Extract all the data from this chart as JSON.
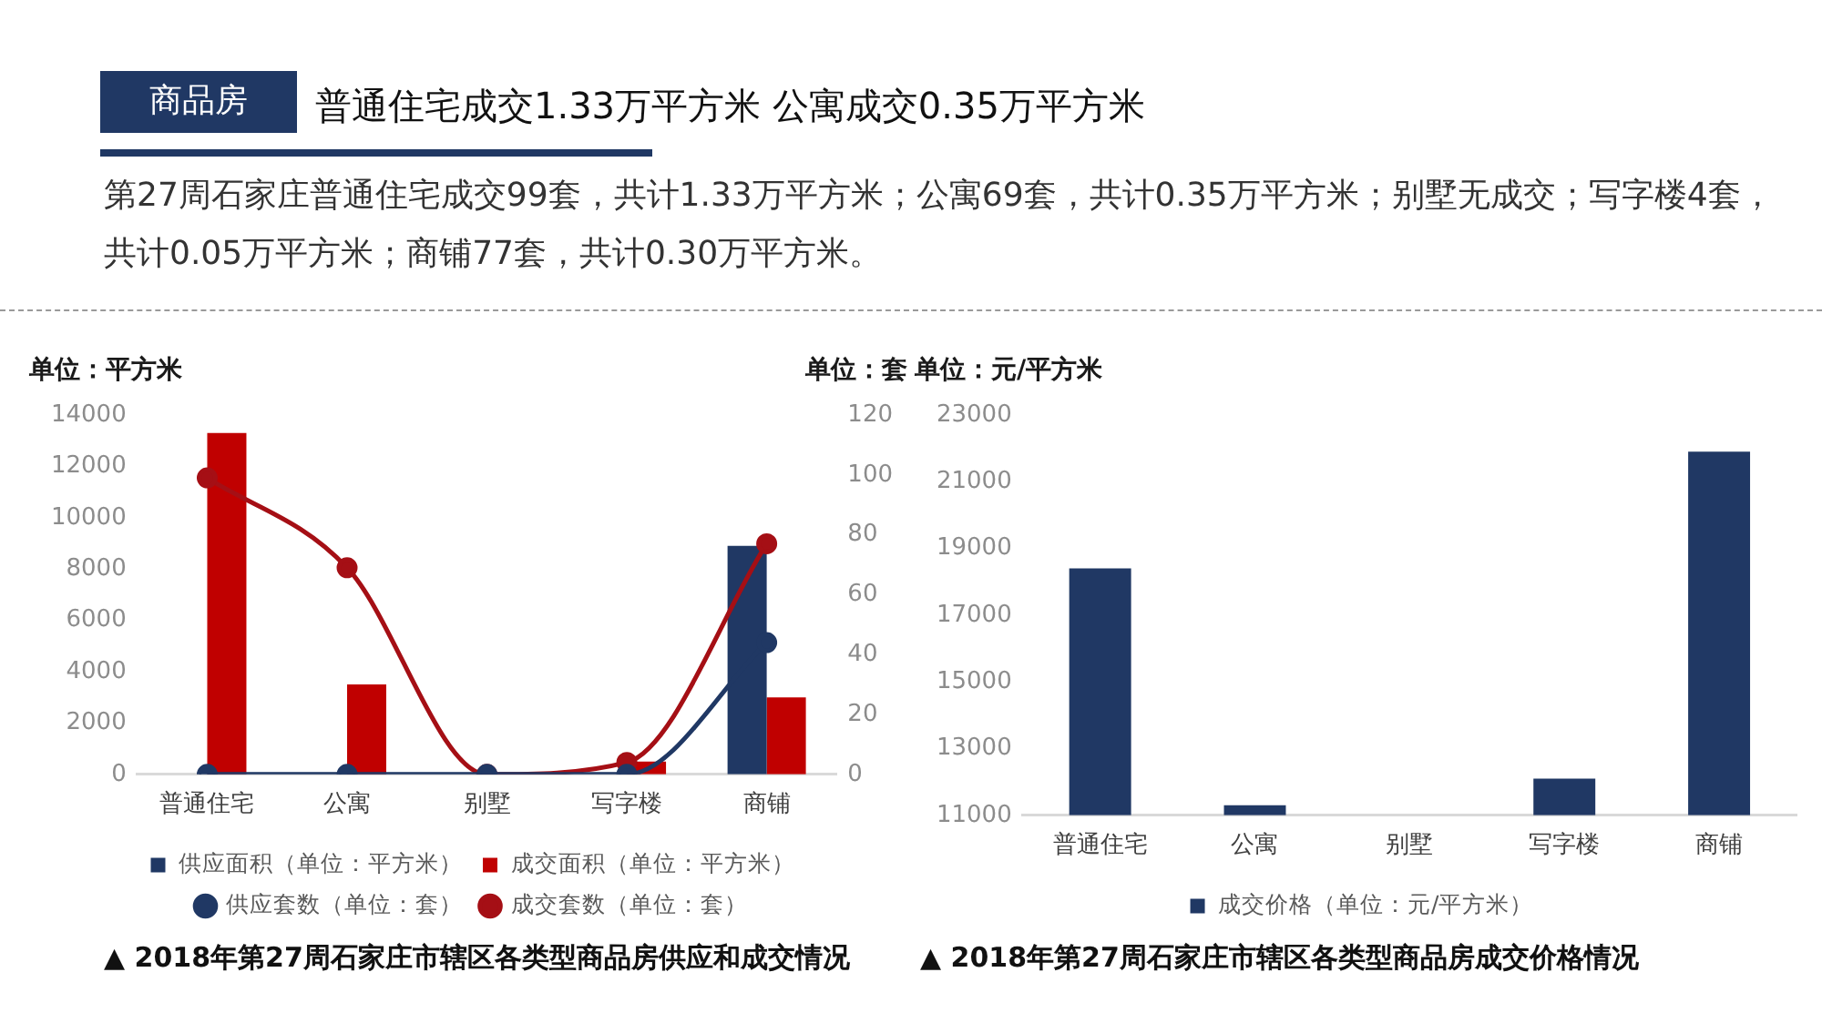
{
  "chart_data": [
    {
      "type": "other",
      "title": "普通住宅成交1.33万平方米 公寓成交0.35万平方米",
      "subtitle": "第27周石家庄普通住宅成交99套，共计1.33万平方米；公寓69套，共计0.35万平方米；别墅无成交；写字楼4套，共计0.05万平方米；商铺77套，共计0.30万平方米。",
      "annotations": [
        "商品房"
      ]
    },
    {
      "type": "bar",
      "ylabel": "单位：平方米",
      "y2label": "单位：套",
      "categories": [
        "普通住宅",
        "公寓",
        "别墅",
        "写字楼",
        "商铺"
      ],
      "series": [
        {
          "name": "供应面积（单位：平方米）",
          "type": "bar",
          "color": "#203864",
          "values": [
            0,
            0,
            0,
            0,
            8900
          ]
        },
        {
          "name": "成交面积（单位：平方米）",
          "type": "bar",
          "color": "#c00000",
          "values": [
            13300,
            3500,
            0,
            500,
            3000
          ]
        },
        {
          "name": "供应套数（单位：套）",
          "type": "line",
          "axis": "y2",
          "color": "#203864",
          "values": [
            0,
            0,
            0,
            0,
            44
          ]
        },
        {
          "name": "成交套数（单位：套）",
          "type": "line",
          "axis": "y2",
          "color": "#a50f15",
          "values": [
            99,
            69,
            0,
            4,
            77
          ]
        }
      ],
      "ylim": [
        0,
        14000
      ],
      "yticks": [
        0,
        2000,
        4000,
        6000,
        8000,
        10000,
        12000,
        14000
      ],
      "y2lim": [
        0,
        120
      ],
      "y2ticks": [
        0,
        20,
        40,
        60,
        80,
        100,
        120
      ],
      "legend": "bottom",
      "marker": "circle",
      "annotations": [
        "▲ 2018年第27周石家庄市辖区各类型商品房供应和成交情况"
      ]
    },
    {
      "type": "bar",
      "ylabel": "单位：元/平方米",
      "categories": [
        "普通住宅",
        "公寓",
        "别墅",
        "写字楼",
        "商铺"
      ],
      "series": [
        {
          "name": "成交价格（单位：元/平方米）",
          "color": "#203864",
          "values": [
            18400,
            11300,
            null,
            12100,
            21900
          ]
        }
      ],
      "ylim": [
        11000,
        23000
      ],
      "yticks": [
        11000,
        13000,
        15000,
        17000,
        19000,
        21000,
        23000
      ],
      "legend": "bottom",
      "annotations": [
        "▲ 2018年第27周石家庄市辖区各类型商品房成交价格情况"
      ]
    }
  ]
}
